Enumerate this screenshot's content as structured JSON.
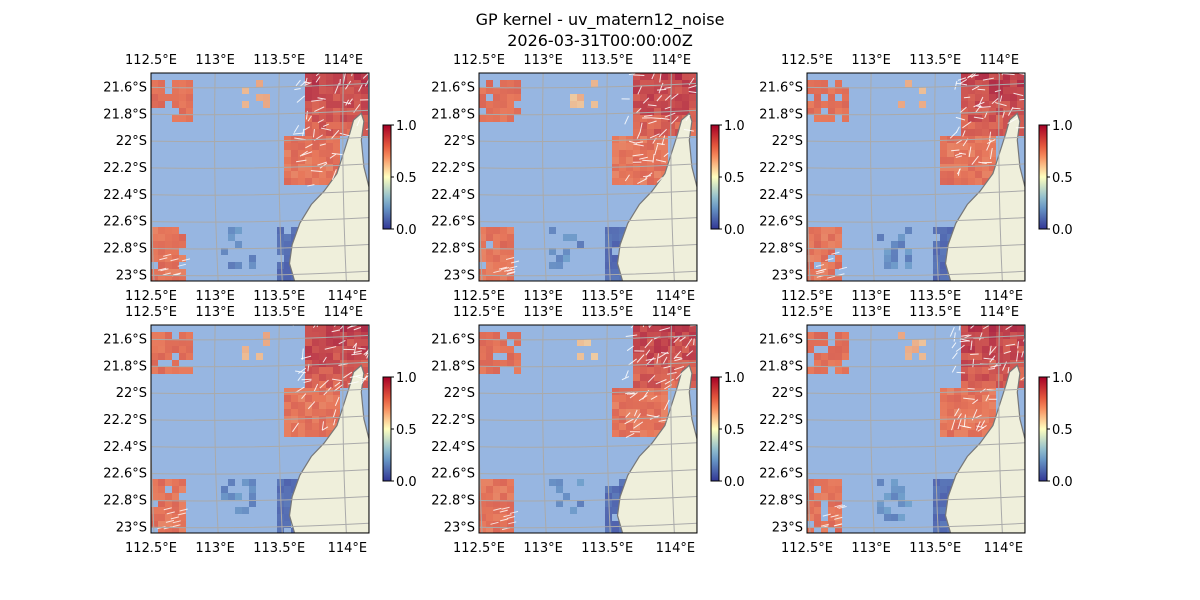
{
  "title": "GP kernel - uv_matern12_noise",
  "subtitle": "2026-03-31T00:00:00Z",
  "map": {
    "lon_labels": [
      "112.5°E",
      "113°E",
      "113.5°E",
      "114°E"
    ],
    "lat_labels": [
      "21.6°S",
      "21.8°S",
      "22°S",
      "22.2°S",
      "22.4°S",
      "22.6°S",
      "22.8°S",
      "23°S"
    ],
    "lon_range": [
      112.5,
      114.2
    ],
    "lat_range": [
      -23.05,
      -21.5
    ],
    "colormap": "RdYlBu_r",
    "ocean_color": "#97b6e1",
    "land_color": "#efefdb",
    "grid": true
  },
  "colorbar": {
    "range": [
      0.0,
      1.0
    ],
    "tick_labels": [
      "0.0",
      "0.5",
      "1.0"
    ]
  },
  "panels": [
    {
      "id": "row1-col1"
    },
    {
      "id": "row1-col2"
    },
    {
      "id": "row1-col3"
    },
    {
      "id": "row2-col1"
    },
    {
      "id": "row2-col2"
    },
    {
      "id": "row2-col3"
    }
  ]
}
